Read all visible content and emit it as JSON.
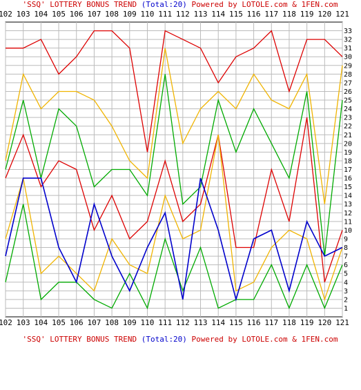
{
  "chart_data": {
    "type": "line",
    "title_top": "'SSQ' LOTTERY BONUS TREND (Total:20)  Powered by LOTOLE.com & 1FEN.com",
    "title_bottom": "'SSQ' LOTTERY BONUS TREND (Total:20)  Powered by LOTOLE.com & 1FEN.com",
    "title_parts": {
      "lead": "'SSQ' LOTTERY BONUS TREND ",
      "total": "(Total:20)",
      "powered": "  Powered by LOTOLE.com & 1FEN.com"
    },
    "categories": [
      "102",
      "103",
      "104",
      "105",
      "106",
      "107",
      "108",
      "109",
      "110",
      "111",
      "112",
      "113",
      "114",
      "115",
      "116",
      "117",
      "118",
      "119",
      "120",
      "121"
    ],
    "ylim": [
      0,
      34
    ],
    "yticks": [
      1,
      2,
      3,
      4,
      5,
      6,
      7,
      8,
      9,
      10,
      11,
      12,
      13,
      14,
      15,
      16,
      17,
      18,
      19,
      20,
      21,
      22,
      23,
      24,
      25,
      26,
      27,
      28,
      29,
      30,
      31,
      32,
      33
    ],
    "grid": true,
    "series": [
      {
        "color": "#dd0000",
        "values": [
          31,
          31,
          32,
          28,
          30,
          33,
          33,
          31,
          19,
          33,
          32,
          31,
          27,
          30,
          31,
          33,
          26,
          32,
          32,
          30
        ]
      },
      {
        "color": "#f0b400",
        "values": [
          18,
          28,
          24,
          26,
          26,
          25,
          22,
          18,
          16,
          31,
          20,
          24,
          26,
          24,
          28,
          25,
          24,
          28,
          13,
          29
        ]
      },
      {
        "color": "#00aa00",
        "values": [
          17,
          25,
          16,
          24,
          22,
          15,
          17,
          17,
          14,
          28,
          13,
          15,
          25,
          19,
          24,
          20,
          16,
          26,
          7,
          25
        ]
      },
      {
        "color": "#dd0000",
        "values": [
          16,
          21,
          15,
          18,
          17,
          10,
          14,
          9,
          11,
          18,
          11,
          13,
          21,
          8,
          8,
          17,
          11,
          23,
          4,
          10
        ]
      },
      {
        "color": "#f0b400",
        "values": [
          9,
          16,
          5,
          7,
          5,
          3,
          9,
          6,
          5,
          14,
          9,
          10,
          21,
          3,
          4,
          8,
          10,
          9,
          2,
          8
        ]
      },
      {
        "color": "#00aa00",
        "values": [
          4,
          13,
          2,
          4,
          4,
          2,
          1,
          5,
          1,
          9,
          3,
          8,
          1,
          2,
          2,
          6,
          1,
          6,
          1,
          6
        ]
      },
      {
        "color": "#0000cc",
        "values": [
          7,
          16,
          16,
          8,
          4,
          13,
          7,
          3,
          8,
          12,
          2,
          16,
          10,
          2,
          9,
          10,
          3,
          11,
          7,
          8
        ]
      }
    ]
  }
}
